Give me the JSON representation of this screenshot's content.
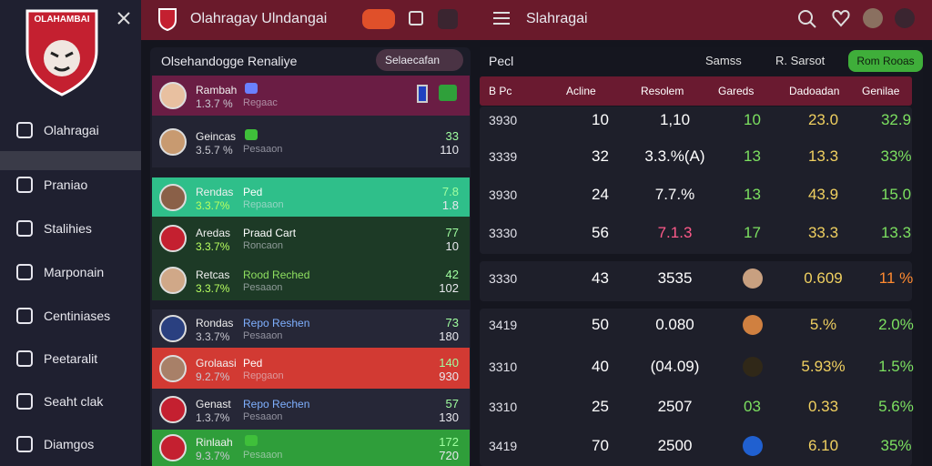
{
  "sidebar": {
    "logo": "OLAHAMBAI",
    "nav": [
      "Olahragai",
      "Praniao",
      "Stalihies",
      "Marponain",
      "Centiniases",
      "Peetaralit",
      "Seaht clak",
      "Diamgos"
    ]
  },
  "header": {
    "brand": "Olahragay Ulndangai",
    "section": "Slahragai"
  },
  "players": {
    "title": "Olsehandogge Renaliye",
    "button": "Selaecafan",
    "rows": [
      {
        "name": "Rambah",
        "pct": "1.3.7 %",
        "club": null,
        "club_sub": "Regaac",
        "a": null,
        "b": null
      },
      {
        "name": "Geincas",
        "pct": "3.5.7 %",
        "club": null,
        "club_sub": "Pesaaon",
        "a": "33",
        "b": "110"
      },
      {
        "name": "Rendas",
        "pct": "3.3.7%",
        "club": "Ped",
        "club_sub": "Repaaon",
        "a": "7.8",
        "b": "1.8"
      },
      {
        "name": "Aredas",
        "pct": "3.3.7%",
        "club": "Praad Cart",
        "club_sub": "Roncaon",
        "a": "77",
        "b": "10"
      },
      {
        "name": "Retcas",
        "pct": "3.3.7%",
        "club": "Rood Reched",
        "club_sub": "Pesaaon",
        "a": "42",
        "b": "102"
      },
      {
        "name": "Rondas",
        "pct": "3.3.7%",
        "club": "Repo Reshen",
        "club_sub": "Pesaaon",
        "a": "73",
        "b": "180"
      },
      {
        "name": "Grolaasi",
        "pct": "9.2.7%",
        "club": "Ped",
        "club_sub": "Repgaon",
        "a": "140",
        "b": "930"
      },
      {
        "name": "Genast",
        "pct": "1.3.7%",
        "club": "Repo Rechen",
        "club_sub": "Pesaaon",
        "a": "57",
        "b": "130"
      },
      {
        "name": "Rinlaah",
        "pct": "9.3.7%",
        "club": null,
        "club_sub": "Pesaaon",
        "a": "172",
        "b": "720"
      }
    ]
  },
  "stats": {
    "title": "Pecl",
    "filters": [
      "Samss",
      "R. Sarsot"
    ],
    "button": "Rom Rooas",
    "columns": [
      "B Pc",
      "Acline",
      "Resolem",
      "Gareds",
      "Dadoadan",
      "Genilae"
    ],
    "rows": [
      [
        "3930",
        "10",
        "1,10",
        "10",
        "23.0",
        "32.9"
      ],
      [
        "3339",
        "32",
        "3.3.%(A)",
        "13",
        "13.3",
        "33%"
      ],
      [
        "3930",
        "24",
        "7.7.%",
        "13",
        "43.9",
        "15.0"
      ],
      [
        "3330",
        "56",
        "7.1.3",
        "17",
        "33.3",
        "13.3"
      ],
      [
        "3330",
        "43",
        "3535",
        null,
        "0.609",
        "11 %"
      ],
      [
        "3419",
        "50",
        "0.080",
        null,
        "5.%",
        "2.0%"
      ],
      [
        "3310",
        "40",
        "(04.09)",
        null,
        "5.93%",
        "1.5%"
      ],
      [
        "3310",
        "25",
        "2507",
        "03",
        "0.33",
        "5.6%"
      ],
      [
        "3419",
        "70",
        "2500",
        null,
        "6.10",
        "35%"
      ]
    ]
  }
}
